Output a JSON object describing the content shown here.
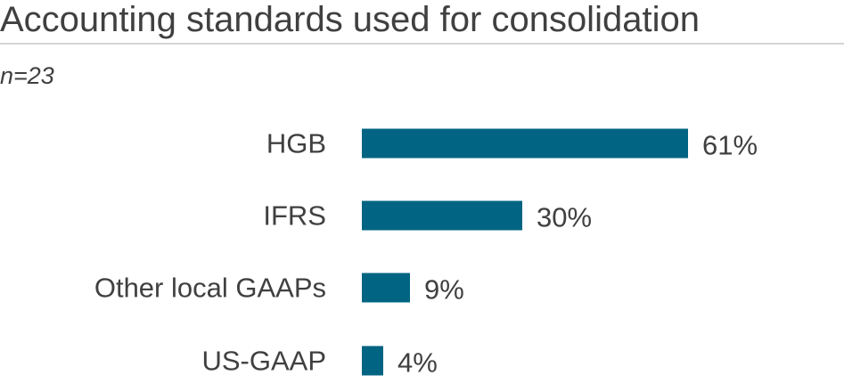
{
  "title": "Accounting standards used for consolidation",
  "subtitle": "n=23",
  "colors": {
    "bar": "#006482",
    "text": "#404040",
    "rule": "#d4d4d4"
  },
  "chart_data": {
    "type": "bar",
    "orientation": "horizontal",
    "title": "Accounting standards used for consolidation",
    "subtitle": "n=23",
    "categories": [
      "HGB",
      "IFRS",
      "Other local GAAPs",
      "US-GAAP"
    ],
    "values": [
      61,
      30,
      9,
      4
    ],
    "value_labels": [
      "61%",
      "30%",
      "9%",
      "4%"
    ],
    "unit": "%",
    "xlabel": "",
    "ylabel": "",
    "xlim": [
      0,
      100
    ],
    "grid": false,
    "legend": "none"
  }
}
